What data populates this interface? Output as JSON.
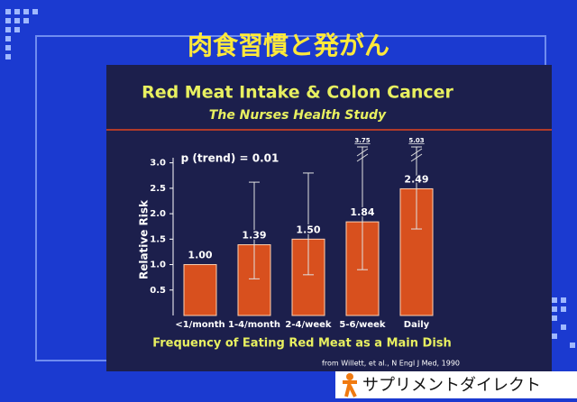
{
  "slide_title": "肉食習慣と発がん",
  "logo": "サプリメントダイレクト",
  "chart_data": {
    "type": "bar",
    "title": "Red Meat Intake & Colon Cancer",
    "subtitle": "The Nurses Health Study",
    "annotation": "p (trend) = 0.01",
    "y_label": "Relative Risk",
    "x_label": "Frequency of Eating Red Meat as a Main Dish",
    "source": "from Willett, et al., N Engl J Med, 1990",
    "categories": [
      "<1/month",
      "1-4/month",
      "2-4/week",
      "5-6/week",
      "Daily"
    ],
    "values": [
      1.0,
      1.39,
      1.5,
      1.84,
      2.49
    ],
    "value_labels": [
      "1.00",
      "1.39",
      "1.50",
      "1.84",
      "2.49"
    ],
    "ci_low": [
      null,
      0.72,
      0.8,
      0.9,
      1.7
    ],
    "ci_high": [
      null,
      2.62,
      2.8,
      3.75,
      5.03
    ],
    "color": "#d8501e",
    "ylim": [
      0,
      3.1
    ],
    "yticks": [
      0.5,
      {
        "value": 1,
        "label": "1.0"
      },
      1.5,
      {
        "value": 2,
        "label": "2.0"
      },
      2.5,
      {
        "value": 3,
        "label": "3.0"
      }
    ]
  }
}
